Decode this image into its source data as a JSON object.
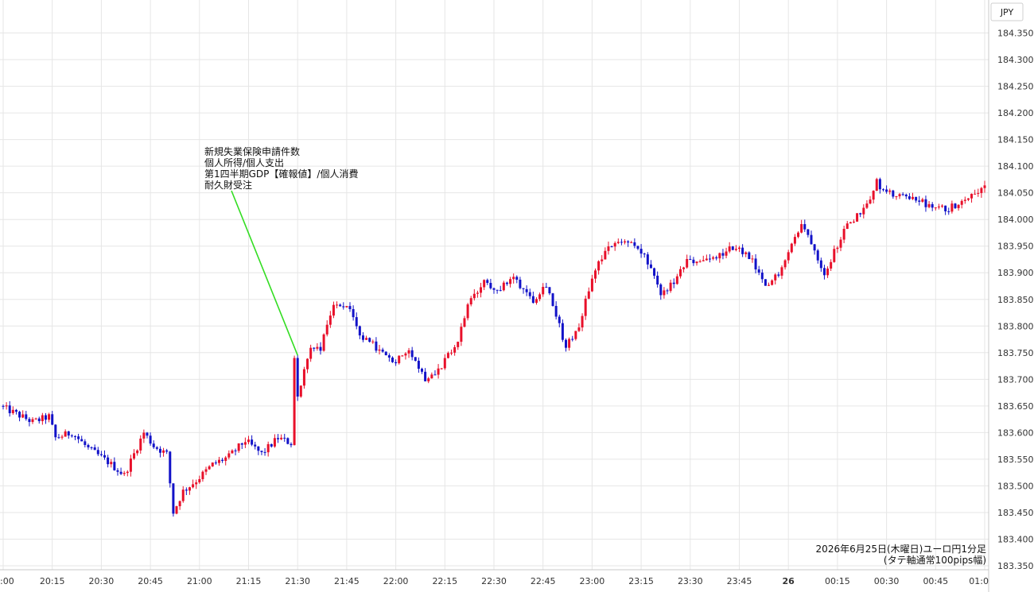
{
  "chart_data": {
    "type": "candlestick",
    "currency": "JPY",
    "caption_line1": "2026年6月25日(木曜日)ユーロ円1分足",
    "caption_line2": "(タテ軸通常100pips幅)",
    "annotation": [
      "新規失業保険申請件数",
      "個人所得/個人支出",
      "第1四半期GDP【確報値】/個人消費",
      "耐久財受注"
    ],
    "annotation_time": "21:30",
    "ylim": [
      183.35,
      184.4
    ],
    "y_ticks": [
      "184.350",
      "184.300",
      "184.250",
      "184.200",
      "184.150",
      "184.100",
      "184.050",
      "184.000",
      "183.950",
      "183.900",
      "183.850",
      "183.800",
      "183.750",
      "183.700",
      "183.650",
      "183.600",
      "183.550",
      "183.500",
      "183.450",
      "183.400",
      "183.350"
    ],
    "x_ticks": [
      ":00",
      "20:15",
      "20:30",
      "20:45",
      "21:00",
      "21:15",
      "21:30",
      "21:45",
      "22:00",
      "22:15",
      "22:30",
      "22:45",
      "23:00",
      "23:15",
      "23:30",
      "23:45",
      "26",
      "00:15",
      "00:30",
      "00:45",
      "01:0"
    ],
    "x_start": "20:00",
    "x_end": "01:00",
    "colors": {
      "up": "#e8102a",
      "down": "#1212c8",
      "annotation_line": "#33dd22",
      "grid": "#e6e6e6"
    },
    "anchors": [
      [
        "20:00",
        183.65
      ],
      [
        "20:10",
        183.62
      ],
      [
        "20:15",
        183.63
      ],
      [
        "20:17",
        183.59
      ],
      [
        "20:22",
        183.6
      ],
      [
        "20:27",
        183.57
      ],
      [
        "20:33",
        183.545
      ],
      [
        "20:38",
        183.52
      ],
      [
        "20:41",
        183.56
      ],
      [
        "20:44",
        183.6
      ],
      [
        "20:47",
        183.575
      ],
      [
        "20:51",
        183.56
      ],
      [
        "20:53",
        183.45
      ],
      [
        "20:56",
        183.49
      ],
      [
        "21:00",
        183.51
      ],
      [
        "21:05",
        183.54
      ],
      [
        "21:10",
        183.555
      ],
      [
        "21:15",
        183.585
      ],
      [
        "21:20",
        183.56
      ],
      [
        "21:25",
        183.59
      ],
      [
        "21:29",
        183.58
      ],
      [
        "21:30",
        183.74
      ],
      [
        "21:31",
        183.67
      ],
      [
        "21:35",
        183.76
      ],
      [
        "21:38",
        183.76
      ],
      [
        "21:42",
        183.84
      ],
      [
        "21:46",
        183.84
      ],
      [
        "21:50",
        183.78
      ],
      [
        "21:55",
        183.76
      ],
      [
        "22:00",
        183.73
      ],
      [
        "22:05",
        183.76
      ],
      [
        "22:10",
        183.7
      ],
      [
        "22:15",
        183.725
      ],
      [
        "22:20",
        183.77
      ],
      [
        "22:23",
        183.84
      ],
      [
        "22:28",
        183.88
      ],
      [
        "22:33",
        183.87
      ],
      [
        "22:37",
        183.89
      ],
      [
        "22:43",
        183.85
      ],
      [
        "22:47",
        183.88
      ],
      [
        "22:50",
        183.82
      ],
      [
        "22:53",
        183.76
      ],
      [
        "22:57",
        183.8
      ],
      [
        "23:00",
        183.87
      ],
      [
        "23:03",
        183.92
      ],
      [
        "23:08",
        183.96
      ],
      [
        "23:12",
        183.96
      ],
      [
        "23:17",
        183.93
      ],
      [
        "23:22",
        183.86
      ],
      [
        "23:26",
        183.88
      ],
      [
        "23:30",
        183.92
      ],
      [
        "23:38",
        183.925
      ],
      [
        "23:45",
        183.95
      ],
      [
        "23:50",
        183.92
      ],
      [
        "23:54",
        183.87
      ],
      [
        "23:58",
        183.9
      ],
      [
        "00:00",
        183.93
      ],
      [
        "00:05",
        183.99
      ],
      [
        "00:08",
        183.96
      ],
      [
        "00:12",
        183.9
      ],
      [
        "00:18",
        183.98
      ],
      [
        "00:25",
        184.03
      ],
      [
        "00:28",
        184.07
      ],
      [
        "00:31",
        184.05
      ],
      [
        "00:36",
        184.04
      ],
      [
        "00:40",
        184.04
      ],
      [
        "00:45",
        184.02
      ],
      [
        "00:50",
        184.02
      ],
      [
        "00:55",
        184.04
      ],
      [
        "01:00",
        184.06
      ]
    ]
  }
}
